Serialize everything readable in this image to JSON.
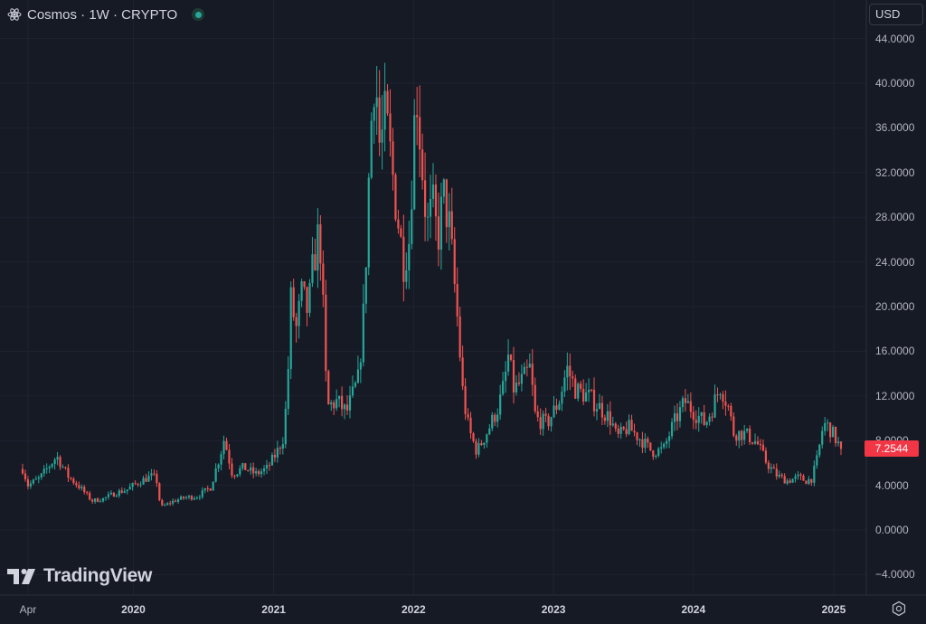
{
  "header": {
    "title": "Cosmos · 1W · CRYPTO",
    "icon": "cosmos-atom-icon",
    "status": "market-open-dot"
  },
  "currency": {
    "label": "USD"
  },
  "branding": {
    "logo_text": "TradingView",
    "logo_icon": "tradingview-logo-icon"
  },
  "colors": {
    "background": "#161a25",
    "grid": "#1f2331",
    "up": "#26a69a",
    "down": "#ef5350",
    "price_tag": "#f23645",
    "axis_text": "#b2b5be"
  },
  "chart_data": {
    "type": "candlestick",
    "symbol": "Cosmos",
    "interval": "1W",
    "exchange": "CRYPTO",
    "title": "Cosmos · 1W · CRYPTO",
    "currency": "USD",
    "last_price": "7.2544",
    "last_value": 7.2544,
    "ylim": [
      -6,
      46
    ],
    "y_ticks": [
      -4,
      0,
      4,
      8,
      12,
      16,
      20,
      24,
      28,
      32,
      36,
      40,
      44
    ],
    "y_tick_labels": [
      "−4.0000",
      "0.0000",
      "4.0000",
      "8.0000",
      "12.0000",
      "16.0000",
      "20.0000",
      "24.0000",
      "28.0000",
      "32.0000",
      "36.0000",
      "40.0000",
      "44.0000"
    ],
    "x_range": [
      "2019-03-18",
      "2025-01-20"
    ],
    "x_ticks": [
      {
        "date": "2019-04-01",
        "label": "Apr",
        "bold": false
      },
      {
        "date": "2020-01-01",
        "label": "2020",
        "bold": true
      },
      {
        "date": "2021-01-01",
        "label": "2021",
        "bold": true
      },
      {
        "date": "2022-01-01",
        "label": "2022",
        "bold": true
      },
      {
        "date": "2023-01-01",
        "label": "2023",
        "bold": true
      },
      {
        "date": "2024-01-01",
        "label": "2024",
        "bold": true
      },
      {
        "date": "2025-01-01",
        "label": "2025",
        "bold": true
      }
    ],
    "grid": true,
    "close_anchors": [
      [
        "2019-03-18",
        5.5
      ],
      [
        "2019-04-01",
        4.0
      ],
      [
        "2019-05-01",
        4.6
      ],
      [
        "2019-06-15",
        6.6
      ],
      [
        "2019-07-15",
        4.8
      ],
      [
        "2019-08-15",
        3.8
      ],
      [
        "2019-09-15",
        2.6
      ],
      [
        "2019-10-15",
        2.8
      ],
      [
        "2019-11-15",
        3.3
      ],
      [
        "2019-12-15",
        3.6
      ],
      [
        "2020-01-15",
        4.3
      ],
      [
        "2020-02-15",
        4.8
      ],
      [
        "2020-03-01",
        4.6
      ],
      [
        "2020-03-12",
        2.0
      ],
      [
        "2020-04-15",
        2.6
      ],
      [
        "2020-05-15",
        2.9
      ],
      [
        "2020-06-15",
        3.0
      ],
      [
        "2020-07-20",
        3.8
      ],
      [
        "2020-08-15",
        6.8
      ],
      [
        "2020-08-25",
        8.2
      ],
      [
        "2020-09-15",
        5.0
      ],
      [
        "2020-10-15",
        5.6
      ],
      [
        "2020-11-15",
        5.0
      ],
      [
        "2020-12-15",
        5.5
      ],
      [
        "2021-01-10",
        7.0
      ],
      [
        "2021-01-25",
        8.2
      ],
      [
        "2021-02-05",
        12.0
      ],
      [
        "2021-02-15",
        20.5
      ],
      [
        "2021-03-01",
        18.0
      ],
      [
        "2021-03-15",
        21.0
      ],
      [
        "2021-04-01",
        19.5
      ],
      [
        "2021-04-15",
        24.0
      ],
      [
        "2021-05-01",
        27.0
      ],
      [
        "2021-05-12",
        18.0
      ],
      [
        "2021-05-20",
        11.0
      ],
      [
        "2021-06-15",
        11.5
      ],
      [
        "2021-07-10",
        10.5
      ],
      [
        "2021-08-10",
        13.5
      ],
      [
        "2021-08-25",
        20.0
      ],
      [
        "2021-09-10",
        35.0
      ],
      [
        "2021-09-22",
        42.0
      ],
      [
        "2021-10-05",
        34.0
      ],
      [
        "2021-10-20",
        37.0
      ],
      [
        "2021-11-10",
        31.0
      ],
      [
        "2021-12-05",
        24.0
      ],
      [
        "2021-12-20",
        26.0
      ],
      [
        "2022-01-08",
        40.0
      ],
      [
        "2022-01-20",
        34.0
      ],
      [
        "2022-02-05",
        27.0
      ],
      [
        "2022-02-20",
        29.0
      ],
      [
        "2022-03-05",
        26.0
      ],
      [
        "2022-03-20",
        30.0
      ],
      [
        "2022-04-05",
        27.0
      ],
      [
        "2022-04-25",
        19.0
      ],
      [
        "2022-05-10",
        12.0
      ],
      [
        "2022-05-25",
        9.0
      ],
      [
        "2022-06-15",
        7.0
      ],
      [
        "2022-07-15",
        9.0
      ],
      [
        "2022-08-10",
        11.0
      ],
      [
        "2022-08-25",
        13.0
      ],
      [
        "2022-09-05",
        15.5
      ],
      [
        "2022-09-20",
        12.5
      ],
      [
        "2022-10-15",
        13.5
      ],
      [
        "2022-11-01",
        14.5
      ],
      [
        "2022-11-15",
        10.0
      ],
      [
        "2022-12-15",
        9.5
      ],
      [
        "2023-01-15",
        11.5
      ],
      [
        "2023-02-05",
        14.5
      ],
      [
        "2023-03-01",
        12.5
      ],
      [
        "2023-04-01",
        12.0
      ],
      [
        "2023-05-01",
        11.0
      ],
      [
        "2023-06-01",
        9.8
      ],
      [
        "2023-06-15",
        8.2
      ],
      [
        "2023-07-15",
        9.2
      ],
      [
        "2023-08-20",
        8.0
      ],
      [
        "2023-09-15",
        7.0
      ],
      [
        "2023-10-15",
        7.2
      ],
      [
        "2023-11-10",
        9.5
      ],
      [
        "2023-12-10",
        11.5
      ],
      [
        "2024-01-05",
        10.5
      ],
      [
        "2024-02-01",
        9.5
      ],
      [
        "2024-02-20",
        11.0
      ],
      [
        "2024-03-12",
        13.0
      ],
      [
        "2024-04-01",
        11.0
      ],
      [
        "2024-04-15",
        8.7
      ],
      [
        "2024-05-15",
        8.6
      ],
      [
        "2024-06-15",
        7.8
      ],
      [
        "2024-07-10",
        6.0
      ],
      [
        "2024-08-05",
        4.9
      ],
      [
        "2024-09-01",
        4.4
      ],
      [
        "2024-10-01",
        4.7
      ],
      [
        "2024-10-20",
        4.4
      ],
      [
        "2024-11-05",
        4.6
      ],
      [
        "2024-11-20",
        6.5
      ],
      [
        "2024-12-05",
        9.5
      ],
      [
        "2024-12-20",
        9.2
      ],
      [
        "2025-01-05",
        8.2
      ],
      [
        "2025-01-20",
        7.2544
      ]
    ]
  }
}
